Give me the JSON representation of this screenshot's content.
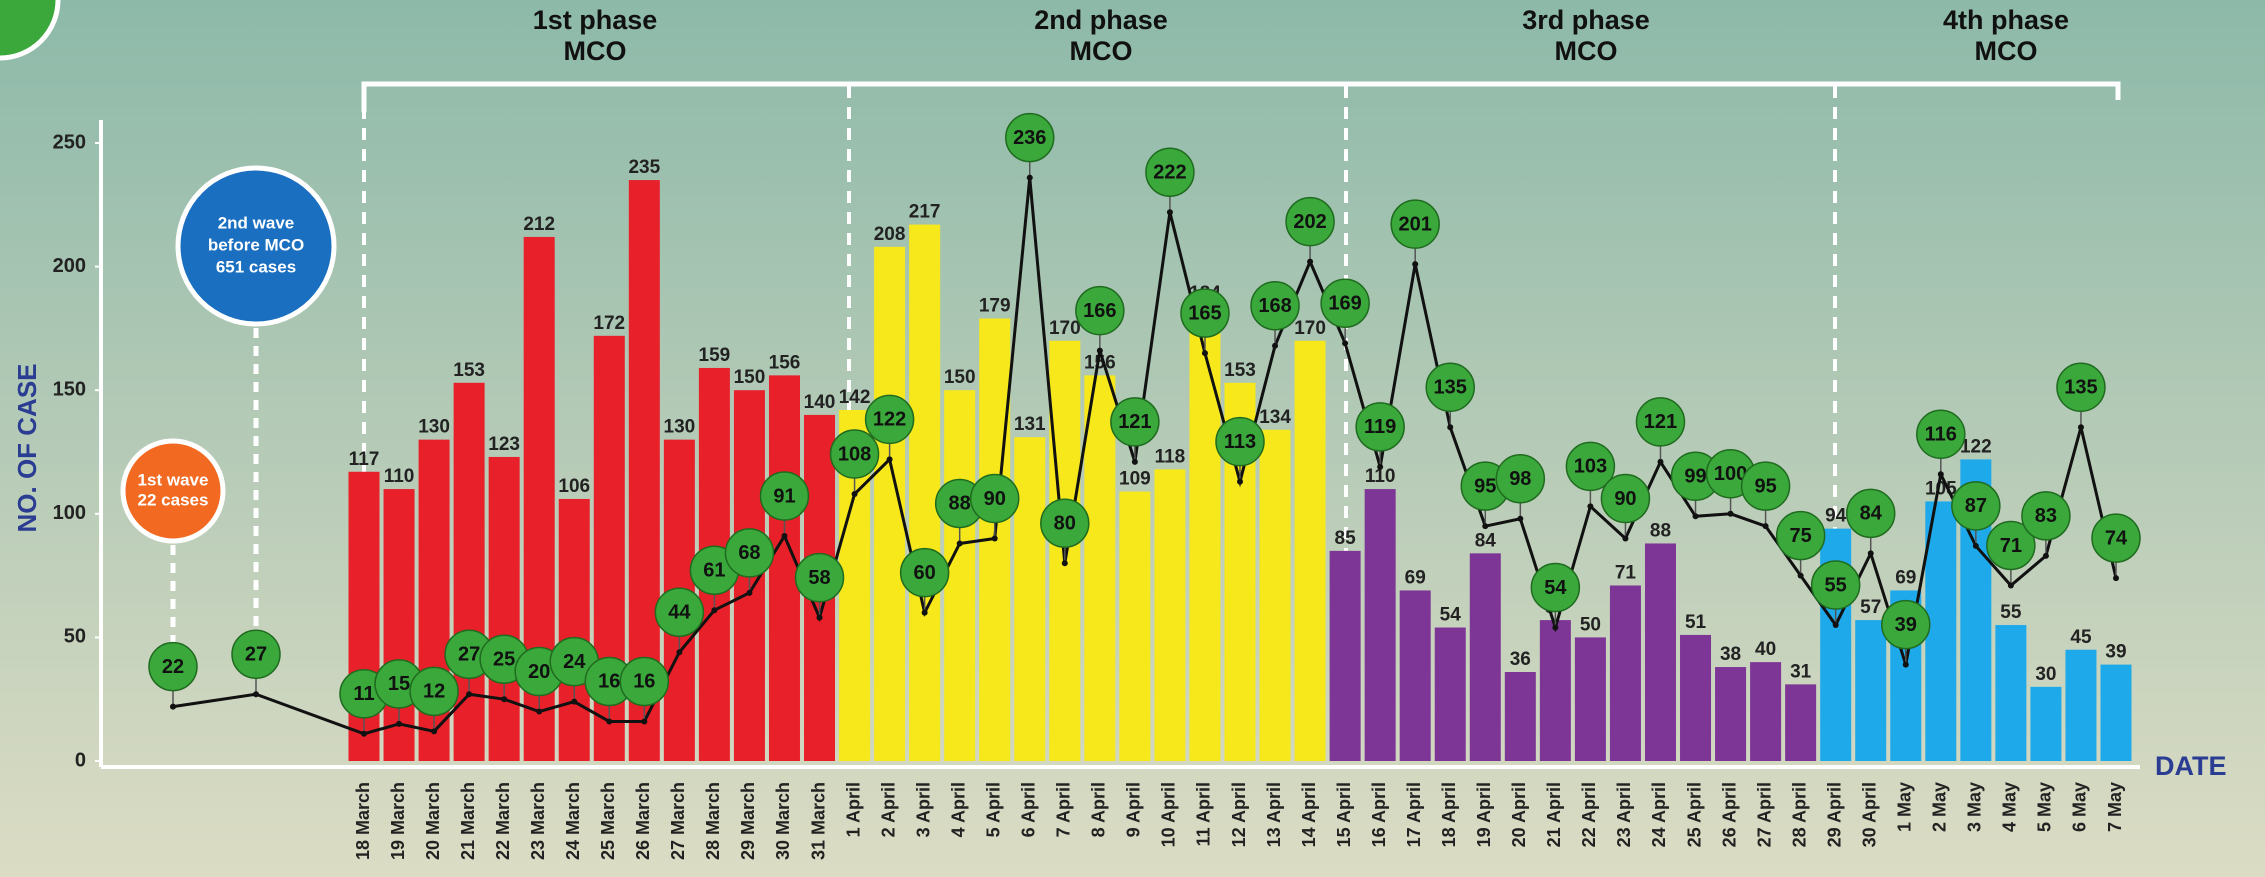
{
  "chart_data": {
    "type": "bar",
    "y_label": "NO. OF CASE",
    "x_label": "DATE",
    "phases": [
      {
        "title": "1st phase",
        "subtitle": "MCO"
      },
      {
        "title": "2nd phase",
        "subtitle": "MCO"
      },
      {
        "title": "3rd phase",
        "subtitle": "MCO"
      },
      {
        "title": "4th phase",
        "subtitle": "MCO"
      }
    ],
    "annotations": [
      {
        "lines": [
          "1st wave",
          "22 cases"
        ],
        "color": "#f26a21"
      },
      {
        "lines": [
          "2nd wave",
          "before MCO",
          "651 cases"
        ],
        "color": "#1a6fc0"
      }
    ],
    "ylim": [
      0,
      250
    ],
    "yticks": [
      0,
      50,
      100,
      150,
      200,
      250
    ],
    "categories": [
      null,
      null,
      "18 March",
      "19 March",
      "20 March",
      "21 March",
      "22 March",
      "23 March",
      "24 March",
      "25 March",
      "26 March",
      "27 March",
      "28 March",
      "29 March",
      "30 March",
      "31 March",
      "1 April",
      "2 April",
      "3 April",
      "4 April",
      "5 April",
      "6 April",
      "7 April",
      "8 April",
      "9 April",
      "10 April",
      "11 April",
      "12 April",
      "13 April",
      "14 April",
      "15 April",
      "16 April",
      "17 April",
      "18 April",
      "19 April",
      "20 April",
      "21 April",
      "22 April",
      "23 April",
      "24 April",
      "25 April",
      "26 April",
      "27 April",
      "28 April",
      "29 April",
      "30 April",
      "1 May",
      "2 May",
      "3 May",
      "4 May",
      "5 May",
      "6 May",
      "7 May"
    ],
    "series": [
      {
        "type": "bar",
        "colors": [
          null,
          null,
          "#e8202a",
          "#e8202a",
          "#e8202a",
          "#e8202a",
          "#e8202a",
          "#e8202a",
          "#e8202a",
          "#e8202a",
          "#e8202a",
          "#e8202a",
          "#e8202a",
          "#e8202a",
          "#e8202a",
          "#e8202a",
          "#f7e81c",
          "#f7e81c",
          "#f7e81c",
          "#f7e81c",
          "#f7e81c",
          "#f7e81c",
          "#f7e81c",
          "#f7e81c",
          "#f7e81c",
          "#f7e81c",
          "#f7e81c",
          "#f7e81c",
          "#f7e81c",
          "#f7e81c",
          "#7d3596",
          "#7d3596",
          "#7d3596",
          "#7d3596",
          "#7d3596",
          "#7d3596",
          "#7d3596",
          "#7d3596",
          "#7d3596",
          "#7d3596",
          "#7d3596",
          "#7d3596",
          "#7d3596",
          "#7d3596",
          "#1ea9ea",
          "#1ea9ea",
          "#1ea9ea",
          "#1ea9ea",
          "#1ea9ea",
          "#1ea9ea",
          "#1ea9ea",
          "#1ea9ea",
          "#1ea9ea"
        ],
        "values": [
          null,
          null,
          117,
          110,
          130,
          153,
          123,
          212,
          106,
          172,
          235,
          130,
          159,
          150,
          156,
          140,
          142,
          208,
          217,
          150,
          179,
          131,
          170,
          156,
          109,
          118,
          184,
          153,
          134,
          170,
          85,
          110,
          69,
          54,
          84,
          36,
          57,
          50,
          71,
          88,
          51,
          38,
          40,
          31,
          94,
          57,
          69,
          105,
          122,
          55,
          30,
          45,
          39
        ]
      },
      {
        "type": "line",
        "color": "#111111",
        "marker_color": "#3aa83a",
        "values": [
          22,
          27,
          11,
          15,
          12,
          27,
          25,
          20,
          24,
          16,
          16,
          44,
          61,
          68,
          91,
          58,
          108,
          122,
          60,
          88,
          90,
          236,
          80,
          166,
          121,
          222,
          165,
          113,
          168,
          202,
          169,
          119,
          201,
          135,
          95,
          98,
          54,
          103,
          90,
          121,
          99,
          100,
          95,
          75,
          55,
          84,
          39,
          116,
          87,
          71,
          83,
          135,
          74
        ]
      }
    ]
  }
}
